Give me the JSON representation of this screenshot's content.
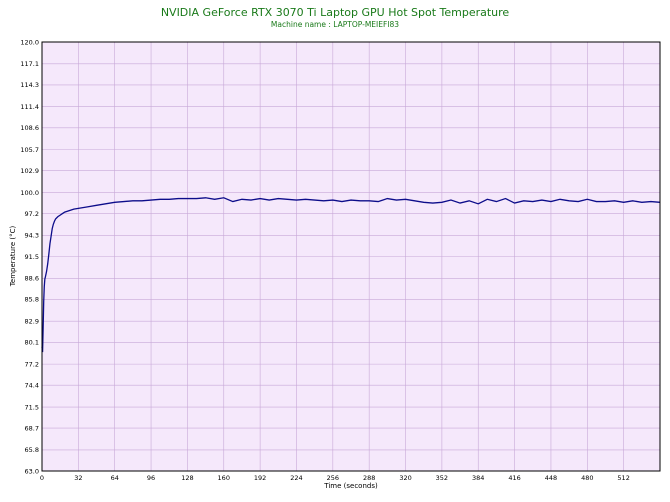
{
  "chart_data": {
    "type": "line",
    "title": "NVIDIA GeForce RTX 3070 Ti Laptop GPU Hot Spot Temperature",
    "subtitle": "Machine name : LAPTOP-MEIEFI83",
    "xlabel": "Time (seconds)",
    "ylabel": "Temperature (°C)",
    "xlim": [
      0,
      544
    ],
    "ylim": [
      63.0,
      120.0
    ],
    "grid": true,
    "colors": {
      "plot_background": "#f5e8fb",
      "grid": "#c8a8d8",
      "line": "#0c0c8a",
      "title": "#1a7a1a"
    },
    "x_ticks": [
      "0",
      "32",
      "64",
      "96",
      "128",
      "160",
      "192",
      "224",
      "256",
      "288",
      "320",
      "352",
      "384",
      "416",
      "448",
      "480",
      "512"
    ],
    "y_ticks": [
      "63.0",
      "65.8",
      "68.7",
      "71.5",
      "74.4",
      "77.2",
      "80.1",
      "82.9",
      "85.8",
      "88.6",
      "91.5",
      "94.3",
      "97.2",
      "100.0",
      "102.9",
      "105.7",
      "108.6",
      "111.4",
      "114.3",
      "117.1",
      "120.0"
    ],
    "series": [
      {
        "x": [
          0,
          0.5,
          1,
          1.5,
          2,
          2.5,
          3,
          4,
          5,
          6,
          7,
          8,
          9,
          10,
          11,
          12,
          14,
          16,
          18,
          20,
          24,
          28,
          32,
          40,
          48,
          56,
          64,
          72,
          80,
          88,
          96,
          104,
          112,
          120,
          128,
          136,
          144,
          152,
          160,
          168,
          176,
          184,
          192,
          200,
          208,
          216,
          224,
          232,
          240,
          248,
          256,
          264,
          272,
          280,
          288,
          296,
          304,
          312,
          320,
          328,
          336,
          344,
          352,
          360,
          368,
          376,
          384,
          392,
          400,
          408,
          416,
          424,
          432,
          440,
          448,
          456,
          464,
          472,
          480,
          488,
          496,
          504,
          512,
          520,
          528,
          536,
          544
        ],
        "values": [
          79.5,
          78.8,
          82.0,
          85.5,
          87.5,
          88.5,
          88.8,
          89.5,
          90.5,
          91.8,
          93.2,
          94.2,
          95.2,
          95.8,
          96.2,
          96.5,
          96.8,
          97.0,
          97.2,
          97.4,
          97.6,
          97.8,
          97.9,
          98.1,
          98.3,
          98.5,
          98.7,
          98.8,
          98.9,
          98.9,
          99.0,
          99.1,
          99.1,
          99.2,
          99.2,
          99.2,
          99.3,
          99.1,
          99.3,
          98.8,
          99.1,
          99.0,
          99.2,
          99.0,
          99.2,
          99.1,
          99.0,
          99.1,
          99.0,
          98.9,
          99.0,
          98.8,
          99.0,
          98.9,
          98.9,
          98.8,
          99.2,
          99.0,
          99.1,
          98.9,
          98.7,
          98.6,
          98.7,
          99.0,
          98.6,
          98.9,
          98.5,
          99.1,
          98.8,
          99.2,
          98.6,
          98.9,
          98.8,
          99.0,
          98.8,
          99.1,
          98.9,
          98.8,
          99.1,
          98.8,
          98.8,
          98.9,
          98.7,
          98.9,
          98.7,
          98.8,
          98.7
        ]
      }
    ]
  }
}
